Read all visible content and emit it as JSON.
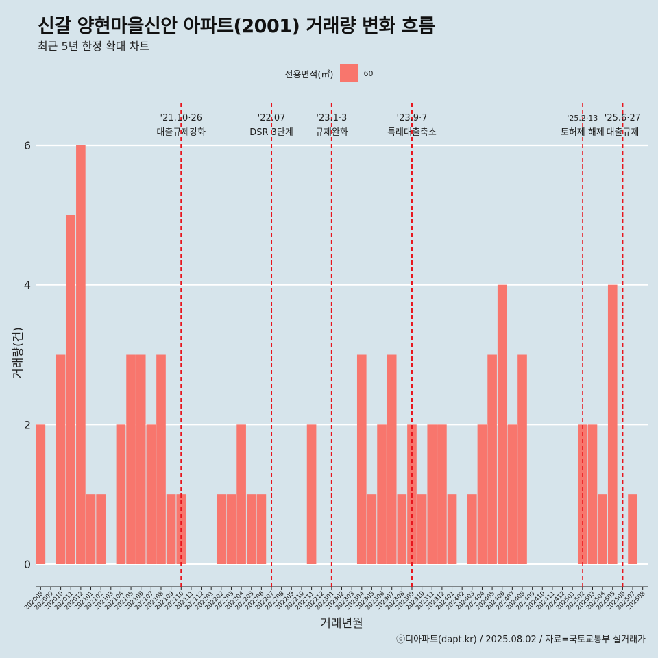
{
  "title": "신갈 양현마을신안 아파트(2001) 거래량 변화 흐름",
  "subtitle": "최근 5년 한정 확대 차트",
  "legend": {
    "title": "전용면적(㎡)",
    "label": "60"
  },
  "caption": "ⓒ디아파트(dapt.kr) / 2025.08.02 / 자료=국토교통부 실거래가",
  "colors": {
    "bar": "#f8766d",
    "background": "#d6e4eb",
    "gridline": "#ffffff",
    "event_line": "#e8141c"
  },
  "chart_data": {
    "type": "bar",
    "xlabel": "거래년월",
    "ylabel": "거래량(건)",
    "ylim": [
      0,
      6
    ],
    "yticks": [
      0,
      2,
      4,
      6
    ],
    "grid": true,
    "legend_position": "top",
    "categories": [
      "202008",
      "202009",
      "202010",
      "202011",
      "202012",
      "202101",
      "202102",
      "202103",
      "202104",
      "202105",
      "202106",
      "202107",
      "202108",
      "202109",
      "202110",
      "202111",
      "202112",
      "202201",
      "202202",
      "202203",
      "202204",
      "202205",
      "202206",
      "202207",
      "202208",
      "202209",
      "202210",
      "202211",
      "202212",
      "202301",
      "202302",
      "202303",
      "202304",
      "202305",
      "202306",
      "202307",
      "202308",
      "202309",
      "202310",
      "202311",
      "202312",
      "202401",
      "202402",
      "202403",
      "202404",
      "202405",
      "202406",
      "202407",
      "202408",
      "202409",
      "202410",
      "202411",
      "202412",
      "202501",
      "202502",
      "202503",
      "202504",
      "202505",
      "202506",
      "202507",
      "202508"
    ],
    "series": [
      {
        "name": "60",
        "values": [
          2,
          0,
          3,
          5,
          6,
          1,
          1,
          0,
          2,
          3,
          3,
          2,
          3,
          1,
          1,
          0,
          0,
          0,
          1,
          1,
          2,
          1,
          1,
          0,
          0,
          0,
          0,
          2,
          0,
          0,
          0,
          0,
          3,
          1,
          2,
          3,
          1,
          2,
          1,
          2,
          2,
          1,
          0,
          1,
          2,
          3,
          4,
          2,
          3,
          0,
          0,
          0,
          0,
          0,
          2,
          2,
          1,
          4,
          0,
          1,
          0
        ]
      }
    ],
    "annotations": [
      {
        "at": "202110",
        "date": "'21.10·26",
        "label": "대출규제강화"
      },
      {
        "at": "202207",
        "date": "'22.07",
        "label": "DSR 3단계"
      },
      {
        "at": "202301",
        "date": "'23.1·3",
        "label": "규제완화"
      },
      {
        "at": "202309",
        "date": "'23.9·7",
        "label": "특례대출축소"
      },
      {
        "at": "202502",
        "date": "'25.2·13",
        "label": "토허제 해제"
      },
      {
        "at": "202506",
        "date": "'25.6·27",
        "label": "대출규제"
      }
    ]
  }
}
